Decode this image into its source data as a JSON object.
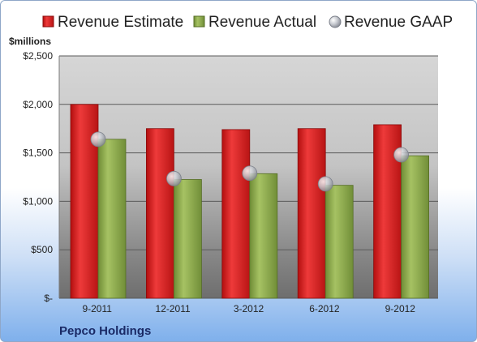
{
  "chart_data": {
    "type": "bar",
    "title": "",
    "unit_label": "$millions",
    "company": "Pepco Holdings",
    "categories": [
      "9-2011",
      "12-2011",
      "3-2012",
      "6-2012",
      "9-2012"
    ],
    "series": [
      {
        "name": "Revenue Estimate",
        "type": "bar",
        "color": "#d42020",
        "values": [
          2000,
          1750,
          1740,
          1750,
          1790
        ]
      },
      {
        "name": "Revenue Actual",
        "type": "bar",
        "color": "#8aa84a",
        "values": [
          1640,
          1225,
          1285,
          1165,
          1470
        ]
      },
      {
        "name": "Revenue GAAP",
        "type": "marker",
        "color": "#c0c4cc",
        "values": [
          1640,
          1235,
          1290,
          1180,
          1480
        ]
      }
    ],
    "yticks": [
      "$-",
      "$500",
      "$1,000",
      "$1,500",
      "$2,000",
      "$2,500"
    ],
    "ylim": [
      0,
      2500
    ],
    "grid": true,
    "legend_position": "top"
  }
}
